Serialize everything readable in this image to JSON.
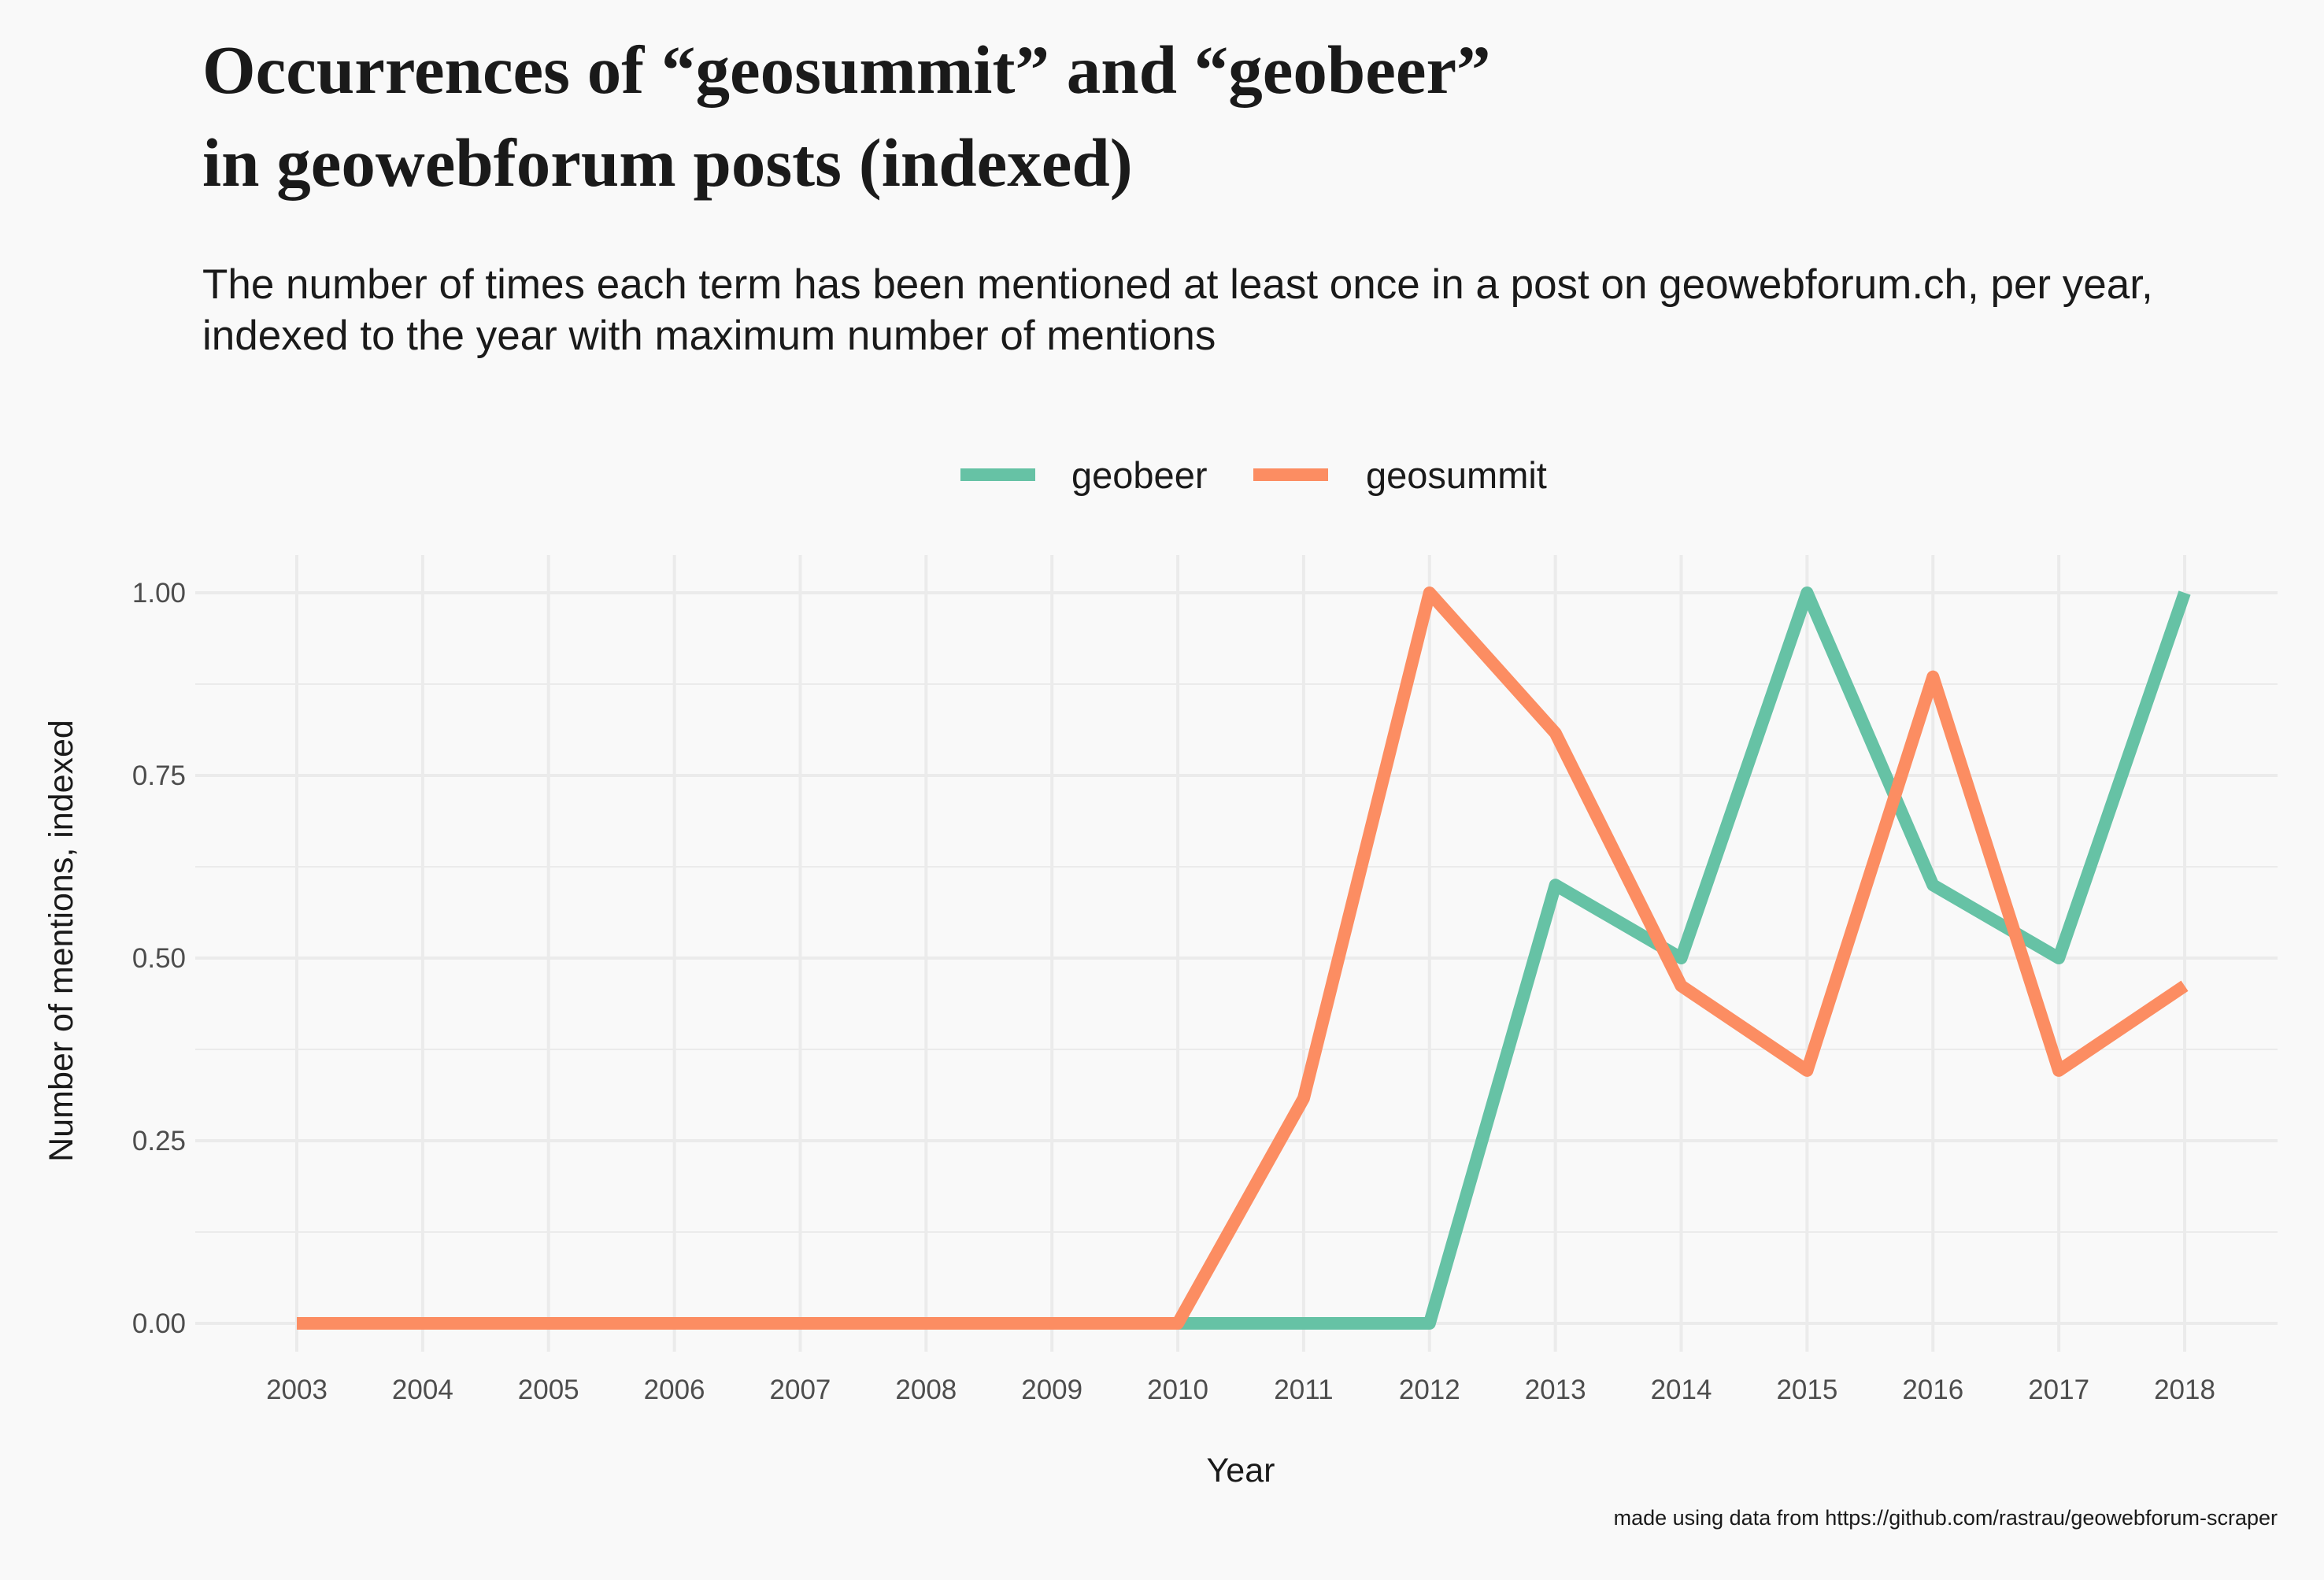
{
  "chart_data": {
    "type": "line",
    "title_lines": [
      "Occurrences of “geosummit” and “geobeer”",
      "in geowebforum posts (indexed)"
    ],
    "subtitle_lines": [
      "The number of times each term has been mentioned at least once in a post on geowebforum.ch, per year,",
      "indexed to the year with maximum number of mentions"
    ],
    "xlabel": "Year",
    "ylabel": "Number of mentions, indexed",
    "caption": "made using data from https://github.com/rastrau/geowebforum-scraper",
    "legend_position": "top",
    "grid": true,
    "ylim": [
      0,
      1
    ],
    "y_ticks": [
      0,
      0.25,
      0.5,
      0.75,
      1
    ],
    "y_tick_labels": [
      "0.00",
      "0.25",
      "0.50",
      "0.75",
      "1.00"
    ],
    "x": [
      "2003",
      "2004",
      "2005",
      "2006",
      "2007",
      "2008",
      "2009",
      "2010",
      "2011",
      "2012",
      "2013",
      "2014",
      "2015",
      "2016",
      "2017",
      "2018"
    ],
    "series": [
      {
        "name": "geobeer",
        "color": "#66c2a5",
        "values": [
          0,
          0,
          0,
          0,
          0,
          0,
          0,
          0,
          0,
          0,
          0.6,
          0.5,
          1.0,
          0.6,
          0.5,
          1.0
        ]
      },
      {
        "name": "geosummit",
        "color": "#fc8d62",
        "values": [
          0,
          0,
          0,
          0,
          0,
          0,
          0,
          0,
          0.308,
          1.0,
          0.808,
          0.462,
          0.346,
          0.885,
          0.346,
          0.462
        ]
      }
    ]
  }
}
